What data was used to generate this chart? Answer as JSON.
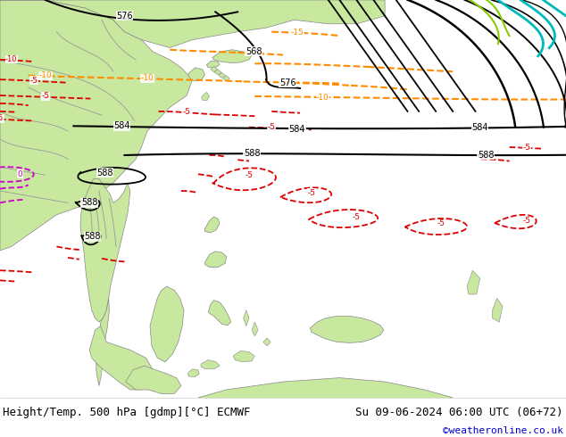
{
  "title_left": "Height/Temp. 500 hPa [gdmp][°C] ECMWF",
  "title_right": "Su 09-06-2024 06:00 UTC (06+72)",
  "credit": "©weatheronline.co.uk",
  "bg_color": "#ffffff",
  "sea_color": "#d8d8d8",
  "land_color": "#c8e8a0",
  "border_color": "#888888",
  "text_color": "#000000",
  "credit_color": "#0000cc",
  "figsize": [
    6.34,
    4.9
  ],
  "dpi": 100,
  "font_size_title": 9.0,
  "font_size_credit": 8,
  "font_size_label": 7
}
